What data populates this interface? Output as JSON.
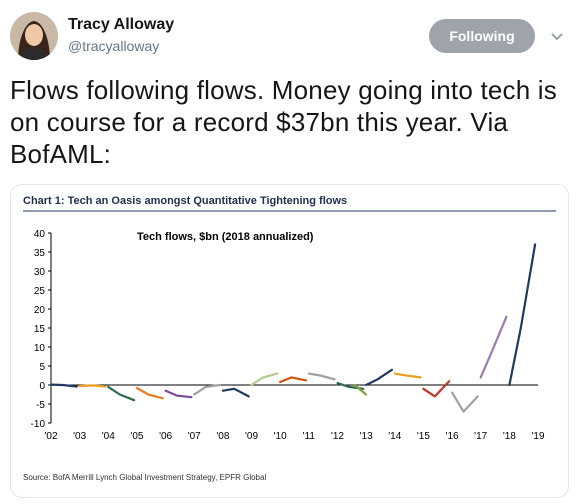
{
  "tweet": {
    "name": "Tracy Alloway",
    "handle": "@tracyalloway",
    "follow_label": "Following",
    "text": "Flows following flows. Money going into tech is on course for a record $37bn this year. Via BofAML:"
  },
  "chart_data": {
    "type": "line",
    "title": "Chart 1: Tech an Oasis amongst Quantitative Tightening flows",
    "subtitle": "Tech flows, $bn (2018 annualized)",
    "source": "Source: BofA Merrill Lynch Global Investment Strategy, EPFR Global",
    "xlabel": "",
    "ylabel": "",
    "xlim": [
      2002,
      2019
    ],
    "ylim": [
      -10,
      40
    ],
    "yticks": [
      40,
      35,
      30,
      25,
      20,
      15,
      10,
      5,
      0,
      -5,
      -10
    ],
    "xticks": [
      "'02",
      "'03",
      "'04",
      "'05",
      "'06",
      "'07",
      "'08",
      "'09",
      "'10",
      "'11",
      "'12",
      "'13",
      "'14",
      "'15",
      "'16",
      "'17",
      "'18",
      "'19"
    ],
    "grid": false,
    "series": [
      {
        "color": "#1f3a60",
        "points": [
          [
            2002.0,
            0.1
          ],
          [
            2002.4,
            0.0
          ],
          [
            2002.9,
            -0.4
          ]
        ]
      },
      {
        "color": "#f0a020",
        "points": [
          [
            2003.0,
            -0.3
          ],
          [
            2003.4,
            -0.1
          ],
          [
            2003.9,
            -0.4
          ]
        ]
      },
      {
        "color": "#2f6b4f",
        "points": [
          [
            2004.0,
            -0.5
          ],
          [
            2004.4,
            -2.5
          ],
          [
            2004.9,
            -4.0
          ]
        ]
      },
      {
        "color": "#e67e22",
        "points": [
          [
            2005.0,
            -0.8
          ],
          [
            2005.4,
            -2.5
          ],
          [
            2005.9,
            -3.5
          ]
        ]
      },
      {
        "color": "#7e4a9c",
        "points": [
          [
            2006.0,
            -1.5
          ],
          [
            2006.4,
            -2.8
          ],
          [
            2006.9,
            -3.2
          ]
        ]
      },
      {
        "color": "#a0a0a0",
        "points": [
          [
            2007.0,
            -2.5
          ],
          [
            2007.4,
            -0.5
          ],
          [
            2007.9,
            0.0
          ]
        ]
      },
      {
        "color": "#1f3a60",
        "points": [
          [
            2008.0,
            -1.5
          ],
          [
            2008.4,
            -1.0
          ],
          [
            2008.9,
            -3.0
          ]
        ]
      },
      {
        "color": "#b0cc90",
        "points": [
          [
            2009.0,
            0.0
          ],
          [
            2009.4,
            2.0
          ],
          [
            2009.9,
            3.0
          ]
        ]
      },
      {
        "color": "#d35400",
        "points": [
          [
            2010.0,
            0.8
          ],
          [
            2010.4,
            2.0
          ],
          [
            2010.9,
            1.2
          ]
        ]
      },
      {
        "color": "#a0a0a0",
        "points": [
          [
            2011.0,
            3.0
          ],
          [
            2011.4,
            2.5
          ],
          [
            2011.9,
            1.5
          ]
        ]
      },
      {
        "color": "#2f6b4f",
        "points": [
          [
            2012.0,
            0.5
          ],
          [
            2012.4,
            -0.5
          ],
          [
            2012.9,
            -1.0
          ]
        ]
      },
      {
        "color": "#7da33a",
        "points": [
          [
            2012.6,
            0.0
          ],
          [
            2013.0,
            -2.5
          ]
        ]
      },
      {
        "color": "#1f3a60",
        "points": [
          [
            2013.0,
            0.0
          ],
          [
            2013.4,
            1.5
          ],
          [
            2013.9,
            4.0
          ]
        ]
      },
      {
        "color": "#f0a020",
        "points": [
          [
            2014.0,
            3.0
          ],
          [
            2014.4,
            2.5
          ],
          [
            2014.9,
            2.0
          ]
        ]
      },
      {
        "color": "#c0392b",
        "points": [
          [
            2015.0,
            -1.0
          ],
          [
            2015.4,
            -3.0
          ],
          [
            2015.9,
            1.0
          ]
        ]
      },
      {
        "color": "#a0a0a0",
        "points": [
          [
            2016.0,
            -2.0
          ],
          [
            2016.4,
            -7.0
          ],
          [
            2016.9,
            -3.0
          ]
        ]
      },
      {
        "color": "#9b7bb8",
        "points": [
          [
            2017.0,
            2.0
          ],
          [
            2017.4,
            9.0
          ],
          [
            2017.9,
            18.0
          ]
        ]
      },
      {
        "color": "#1f3a60",
        "points": [
          [
            2018.0,
            0.0
          ],
          [
            2018.4,
            15.0
          ],
          [
            2018.9,
            37.0
          ]
        ]
      }
    ]
  }
}
